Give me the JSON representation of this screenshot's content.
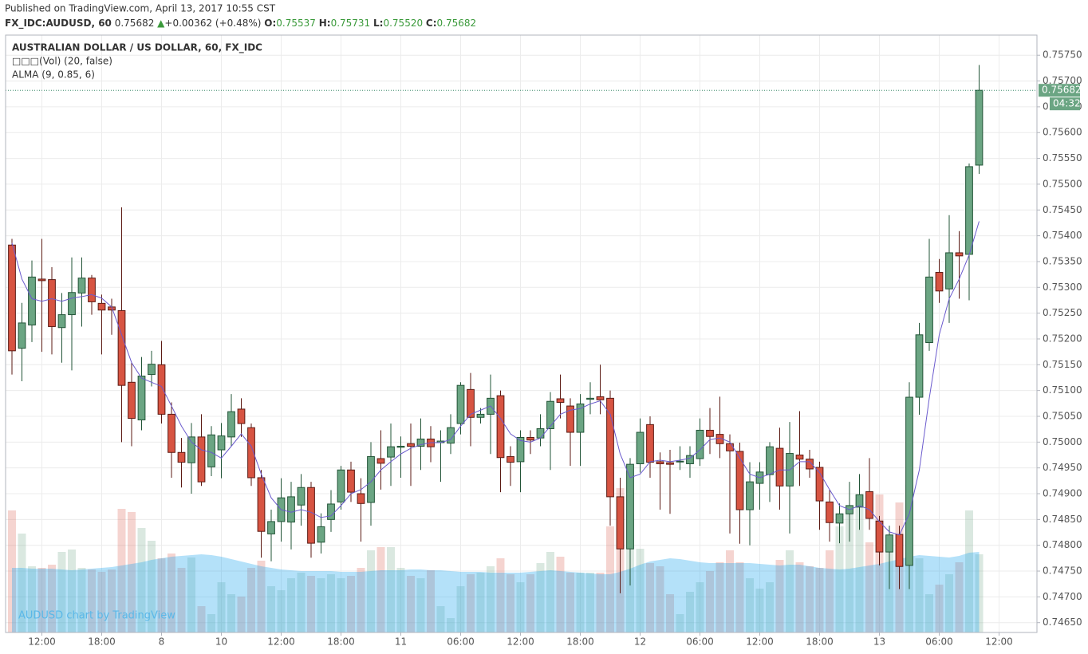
{
  "header": {
    "published": "Published on TradingView.com, April 13, 2017 10:55 CST",
    "symbol": "FX_IDC:AUDUSD, 60",
    "price": "0.75682",
    "arrow": "▲",
    "change": "+0.00362 (+0.48%)",
    "o_label": "O:",
    "o": "0.75537",
    "h_label": "H:",
    "h": "0.75731",
    "l_label": "L:",
    "l": "0.75520",
    "c_label": "C:",
    "c": "0.75682"
  },
  "chart_data": {
    "type": "candlestick",
    "title": "AUSTRALIAN DOLLAR / US DOLLAR, 60, FX_IDC",
    "watermark": "AUDUSD chart by TradingView",
    "up_color": "#6ba583",
    "down_color": "#d75442",
    "grid": true,
    "ylim": [
      0.74631,
      0.75789
    ],
    "yticks": [
      {
        "value": 0.7575,
        "label": "0.75750"
      },
      {
        "value": 0.757,
        "label": "0.75700"
      },
      {
        "value": 0.7565,
        "label": "0.75650"
      },
      {
        "value": 0.756,
        "label": "0.75600"
      },
      {
        "value": 0.7555,
        "label": "0.75550"
      },
      {
        "value": 0.755,
        "label": "0.75500"
      },
      {
        "value": 0.7545,
        "label": "0.75450"
      },
      {
        "value": 0.754,
        "label": "0.75400"
      },
      {
        "value": 0.7535,
        "label": "0.75350"
      },
      {
        "value": 0.753,
        "label": "0.75300"
      },
      {
        "value": 0.7525,
        "label": "0.75250"
      },
      {
        "value": 0.752,
        "label": "0.75200"
      },
      {
        "value": 0.7515,
        "label": "0.75150"
      },
      {
        "value": 0.751,
        "label": "0.75100"
      },
      {
        "value": 0.7505,
        "label": "0.75050"
      },
      {
        "value": 0.75,
        "label": "0.75000"
      },
      {
        "value": 0.7495,
        "label": "0.74950"
      },
      {
        "value": 0.749,
        "label": "0.74900"
      },
      {
        "value": 0.7485,
        "label": "0.74850"
      },
      {
        "value": 0.748,
        "label": "0.74800"
      },
      {
        "value": 0.7475,
        "label": "0.74750"
      },
      {
        "value": 0.747,
        "label": "0.74700"
      },
      {
        "value": 0.7465,
        "label": "0.74650"
      }
    ],
    "xlim": [
      -0.64,
      102.8
    ],
    "xticks": [
      {
        "value": 3,
        "label": "12:00"
      },
      {
        "value": 9,
        "label": "18:00"
      },
      {
        "value": 15,
        "label": "8"
      },
      {
        "value": 21,
        "label": "10"
      },
      {
        "value": 27,
        "label": "12:00"
      },
      {
        "value": 33,
        "label": "18:00"
      },
      {
        "value": 39,
        "label": "11"
      },
      {
        "value": 45,
        "label": "06:00"
      },
      {
        "value": 51,
        "label": "12:00"
      },
      {
        "value": 57,
        "label": "18:00"
      },
      {
        "value": 63,
        "label": "12"
      },
      {
        "value": 69,
        "label": "06:00"
      },
      {
        "value": 75,
        "label": "12:00"
      },
      {
        "value": 81,
        "label": "18:00"
      },
      {
        "value": 87,
        "label": "13"
      },
      {
        "value": 93,
        "label": "06:00"
      },
      {
        "value": 99,
        "label": "12:00"
      }
    ],
    "last_price": {
      "value": 0.75682,
      "label": "0.75682"
    },
    "countdown": "04:32",
    "open": [
      0.75382,
      0.75182,
      0.75227,
      0.75316,
      0.75315,
      0.75222,
      0.75247,
      0.75289,
      0.75318,
      0.75269,
      0.75262,
      0.75255,
      0.75116,
      0.75043,
      0.75131,
      0.7515,
      0.75054,
      0.7498,
      0.7496,
      0.7501,
      0.74952,
      0.74985,
      0.7501,
      0.75064,
      0.75028,
      0.74931,
      0.74822,
      0.74846,
      0.74845,
      0.74878,
      0.74912,
      0.74806,
      0.7485,
      0.74884,
      0.74946,
      0.749,
      0.74883,
      0.74968,
      0.74971,
      0.7499,
      0.74997,
      0.74992,
      0.75006,
      0.74999,
      0.74998,
      0.75036,
      0.75102,
      0.75048,
      0.75054,
      0.7509,
      0.74972,
      0.74962,
      0.75009,
      0.75008,
      0.75026,
      0.75084,
      0.7507,
      0.75019,
      0.75083,
      0.75088,
      0.75085,
      0.74894,
      0.74793,
      0.74958,
      0.75034,
      0.74962,
      0.7496,
      0.74962,
      0.74958,
      0.74968,
      0.75023,
      0.75015,
      0.74997,
      0.74982,
      0.74869,
      0.7492,
      0.74937,
      0.74988,
      0.74915,
      0.74975,
      0.74967,
      0.74951,
      0.74884,
      0.74843,
      0.74861,
      0.74874,
      0.74904,
      0.74847,
      0.74787,
      0.74821,
      0.74761,
      0.75087,
      0.75193,
      0.75329,
      0.75297,
      0.75367,
      0.75364,
      0.75537
    ],
    "high": [
      0.75394,
      0.7527,
      0.75352,
      0.75394,
      0.75339,
      0.75289,
      0.75358,
      0.75358,
      0.75324,
      0.75286,
      0.75278,
      0.75455,
      0.75154,
      0.75165,
      0.75177,
      0.75196,
      0.75077,
      0.75008,
      0.75037,
      0.75054,
      0.75031,
      0.75037,
      0.75093,
      0.75085,
      0.75036,
      0.74946,
      0.74869,
      0.7493,
      0.74923,
      0.74938,
      0.74923,
      0.74862,
      0.74907,
      0.74954,
      0.74962,
      0.7493,
      0.75,
      0.75023,
      0.75036,
      0.75011,
      0.75036,
      0.75046,
      0.75031,
      0.75023,
      0.75054,
      0.75116,
      0.75134,
      0.75066,
      0.75131,
      0.751,
      0.74992,
      0.75023,
      0.75023,
      0.75054,
      0.75097,
      0.75131,
      0.75085,
      0.75093,
      0.75116,
      0.7515,
      0.751,
      0.74931,
      0.74969,
      0.75046,
      0.7505,
      0.7498,
      0.74985,
      0.74992,
      0.74992,
      0.75046,
      0.75066,
      0.75088,
      0.75015,
      0.74999,
      0.74961,
      0.74961,
      0.75,
      0.75028,
      0.75039,
      0.7506,
      0.74985,
      0.74962,
      0.74907,
      0.74881,
      0.74923,
      0.74938,
      0.74969,
      0.74857,
      0.74838,
      0.74838,
      0.75116,
      0.75231,
      0.75394,
      0.75355,
      0.7544,
      0.75409,
      0.7554,
      0.75731
    ],
    "low": [
      0.75131,
      0.75118,
      0.75194,
      0.75175,
      0.7517,
      0.75154,
      0.75139,
      0.75224,
      0.75247,
      0.7517,
      0.75208,
      0.75,
      0.74992,
      0.75023,
      0.75108,
      0.75036,
      0.74931,
      0.74912,
      0.749,
      0.74915,
      0.74934,
      0.7493,
      0.74992,
      0.7501,
      0.74915,
      0.74776,
      0.74769,
      0.74807,
      0.74792,
      0.74838,
      0.74776,
      0.74784,
      0.74826,
      0.74869,
      0.74884,
      0.74807,
      0.74838,
      0.74908,
      0.74915,
      0.74931,
      0.74915,
      0.74946,
      0.74961,
      0.74923,
      0.74977,
      0.75015,
      0.74992,
      0.75036,
      0.74977,
      0.74903,
      0.74915,
      0.74903,
      0.74977,
      0.74992,
      0.74946,
      0.75046,
      0.74954,
      0.74954,
      0.75054,
      0.75054,
      0.74838,
      0.74707,
      0.74722,
      0.74941,
      0.74931,
      0.74869,
      0.74861,
      0.74946,
      0.74931,
      0.74954,
      0.74977,
      0.74969,
      0.74823,
      0.74803,
      0.748,
      0.74869,
      0.74884,
      0.74869,
      0.74823,
      0.74915,
      0.74931,
      0.7483,
      0.74807,
      0.74804,
      0.74807,
      0.7483,
      0.7483,
      0.74761,
      0.74715,
      0.74715,
      0.74715,
      0.75053,
      0.75177,
      0.7527,
      0.75231,
      0.75278,
      0.75275,
      0.7552
    ],
    "close": [
      0.75177,
      0.75231,
      0.7532,
      0.75313,
      0.75224,
      0.75247,
      0.7529,
      0.75318,
      0.75272,
      0.75256,
      0.75256,
      0.7511,
      0.75046,
      0.75128,
      0.75151,
      0.75054,
      0.7498,
      0.74961,
      0.7501,
      0.74923,
      0.75014,
      0.75012,
      0.75059,
      0.75036,
      0.74931,
      0.74827,
      0.74846,
      0.74892,
      0.74894,
      0.74912,
      0.74804,
      0.74836,
      0.7488,
      0.74946,
      0.74903,
      0.74881,
      0.74972,
      0.74959,
      0.74991,
      0.74992,
      0.74992,
      0.75006,
      0.74991,
      0.75002,
      0.75028,
      0.7511,
      0.75048,
      0.75054,
      0.75085,
      0.7497,
      0.74961,
      0.75009,
      0.75004,
      0.75026,
      0.75079,
      0.75077,
      0.75019,
      0.75074,
      0.75085,
      0.75082,
      0.74894,
      0.74793,
      0.74957,
      0.75019,
      0.74961,
      0.74958,
      0.74957,
      0.74963,
      0.74974,
      0.75023,
      0.75011,
      0.74997,
      0.74983,
      0.74869,
      0.74923,
      0.74942,
      0.74991,
      0.74915,
      0.74978,
      0.74967,
      0.74948,
      0.74886,
      0.74844,
      0.74861,
      0.74877,
      0.74898,
      0.74852,
      0.74787,
      0.7482,
      0.74759,
      0.75087,
      0.75208,
      0.7532,
      0.75293,
      0.75367,
      0.75361,
      0.75534,
      0.75682
    ],
    "volume": {
      "name": "□□□(Vol) (20, false)",
      "ylim": [
        0,
        749
      ],
      "ma_color": "#29a9ee",
      "values": [
        153,
        124,
        83,
        81,
        85,
        101,
        104,
        81,
        79,
        76,
        79,
        155,
        151,
        131,
        115,
        93,
        99,
        81,
        94,
        33,
        23,
        63,
        48,
        45,
        81,
        90,
        58,
        53,
        68,
        75,
        71,
        68,
        73,
        68,
        71,
        81,
        103,
        107,
        107,
        81,
        71,
        68,
        78,
        33,
        18,
        58,
        73,
        75,
        83,
        93,
        73,
        63,
        73,
        87,
        101,
        95,
        75,
        75,
        75,
        75,
        133,
        181,
        148,
        105,
        87,
        83,
        48,
        23,
        51,
        63,
        77,
        88,
        103,
        88,
        68,
        55,
        63,
        91,
        103,
        88,
        83,
        81,
        103,
        133,
        153,
        163,
        113,
        173,
        103,
        163,
        185,
        93,
        48,
        60,
        73,
        88,
        153,
        98
      ],
      "ma_values": [
        81,
        81,
        80,
        80,
        80,
        79,
        78,
        79,
        80,
        81,
        82,
        84,
        86,
        88,
        91,
        93,
        95,
        96,
        97,
        98,
        97,
        95,
        92,
        89,
        86,
        83,
        81,
        79,
        78,
        77,
        77,
        77,
        77,
        76,
        76,
        76,
        77,
        78,
        78,
        78,
        79,
        79,
        78,
        78,
        77,
        76,
        76,
        76,
        75,
        75,
        75,
        75,
        76,
        77,
        78,
        77,
        76,
        75,
        74,
        73,
        73,
        76,
        80,
        85,
        89,
        91,
        93,
        92,
        90,
        88,
        87,
        87,
        87,
        87,
        87,
        86,
        85,
        84,
        85,
        85,
        83,
        81,
        80,
        79,
        80,
        82,
        84,
        86,
        89,
        92,
        95,
        97,
        96,
        95,
        94,
        96,
        100,
        101
      ]
    },
    "alma": {
      "name": "ALMA (9, 0.85, 6)",
      "color": "#6a5acd",
      "values": [
        0.75386,
        0.75316,
        0.75278,
        0.75273,
        0.75278,
        0.75273,
        0.75279,
        0.75282,
        0.75286,
        0.75279,
        0.75262,
        0.75208,
        0.75154,
        0.75124,
        0.75116,
        0.75108,
        0.7507,
        0.75031,
        0.75,
        0.74985,
        0.7498,
        0.74969,
        0.74992,
        0.75016,
        0.74992,
        0.74938,
        0.74892,
        0.74869,
        0.74864,
        0.74869,
        0.74864,
        0.74854,
        0.74857,
        0.74877,
        0.749,
        0.74908,
        0.74923,
        0.74946,
        0.74962,
        0.74977,
        0.74988,
        0.74995,
        0.74999,
        0.74999,
        0.75005,
        0.75031,
        0.75054,
        0.75062,
        0.7507,
        0.75046,
        0.75016,
        0.75003,
        0.75,
        0.75008,
        0.75031,
        0.75054,
        0.75062,
        0.75065,
        0.75074,
        0.7508,
        0.75054,
        0.74977,
        0.74931,
        0.74938,
        0.74962,
        0.74965,
        0.74962,
        0.74965,
        0.74969,
        0.74985,
        0.75005,
        0.75008,
        0.75,
        0.74969,
        0.74938,
        0.74931,
        0.74938,
        0.74946,
        0.74946,
        0.74962,
        0.74962,
        0.74941,
        0.74908,
        0.74877,
        0.74869,
        0.74877,
        0.74869,
        0.74846,
        0.74826,
        0.7482,
        0.74861,
        0.74946,
        0.75085,
        0.75208,
        0.75278,
        0.75316,
        0.75363,
        0.75428
      ]
    }
  }
}
